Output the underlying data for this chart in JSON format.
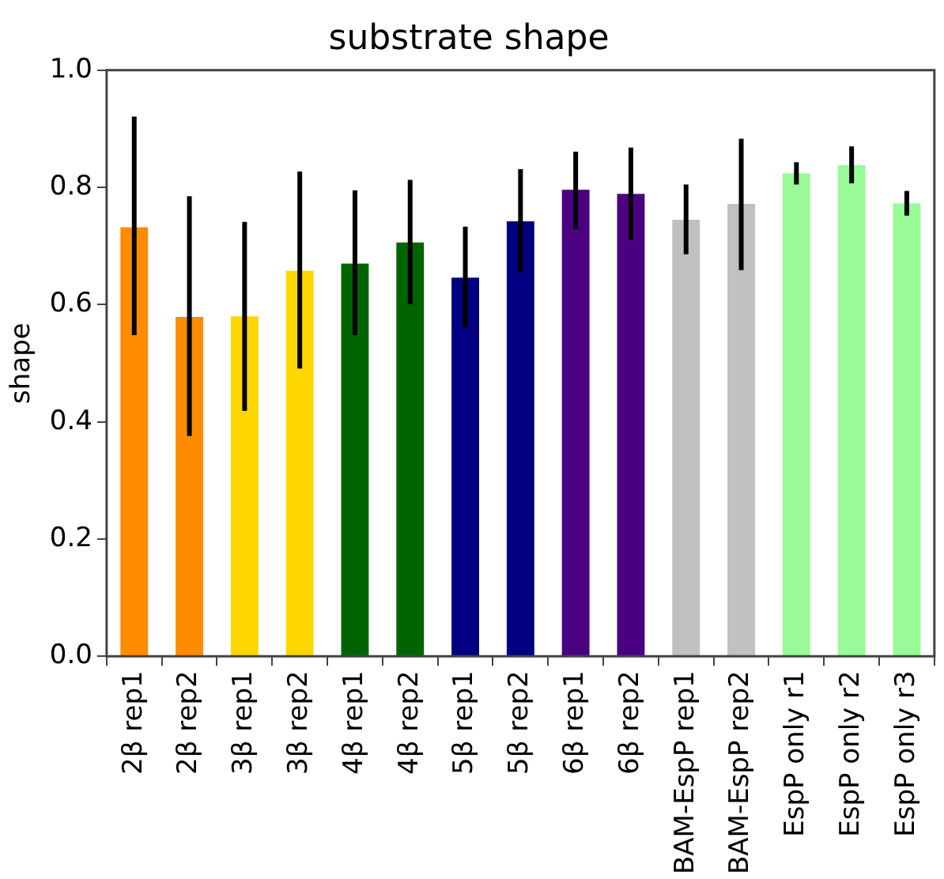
{
  "chart_data": {
    "type": "bar",
    "title": "substrate shape",
    "ylabel": "shape",
    "categories": [
      "2β rep1",
      "2β rep2",
      "3β rep1",
      "3β rep2",
      "4β rep1",
      "4β rep2",
      "5β rep1",
      "5β rep2",
      "6β rep1",
      "6β rep2",
      "BAM-EspP rep1",
      "BAM-EspP rep2",
      "EspP only r1",
      "EspP only r2",
      "EspP only r3"
    ],
    "values": [
      0.732,
      0.579,
      0.58,
      0.658,
      0.67,
      0.706,
      0.646,
      0.742,
      0.796,
      0.789,
      0.745,
      0.772,
      0.824,
      0.838,
      0.773
    ],
    "errors": [
      [
        0.548,
        0.921
      ],
      [
        0.376,
        0.785
      ],
      [
        0.419,
        0.741
      ],
      [
        0.491,
        0.827
      ],
      [
        0.548,
        0.795
      ],
      [
        0.601,
        0.813
      ],
      [
        0.56,
        0.733
      ],
      [
        0.655,
        0.831
      ],
      [
        0.729,
        0.861
      ],
      [
        0.71,
        0.868
      ],
      [
        0.686,
        0.805
      ],
      [
        0.659,
        0.883
      ],
      [
        0.805,
        0.843
      ],
      [
        0.807,
        0.87
      ],
      [
        0.752,
        0.794
      ]
    ],
    "colors": [
      "#ff8c00",
      "#ff8c00",
      "#ffd700",
      "#ffd700",
      "#006400",
      "#006400",
      "#000080",
      "#000080",
      "#4b0082",
      "#4b0082",
      "#c0c0c0",
      "#c0c0c0",
      "#98fb98",
      "#98fb98",
      "#98fb98"
    ],
    "ylim": [
      0,
      1
    ],
    "yticks": [
      {
        "value": 0,
        "label": "0.0"
      },
      {
        "value": 0.2,
        "label": "0.2"
      },
      {
        "value": 0.4,
        "label": "0.4"
      },
      {
        "value": 0.6,
        "label": "0.6"
      },
      {
        "value": 0.8,
        "label": "0.8"
      },
      {
        "value": 1,
        "label": "1.0"
      }
    ],
    "grid": false,
    "legend": false
  }
}
